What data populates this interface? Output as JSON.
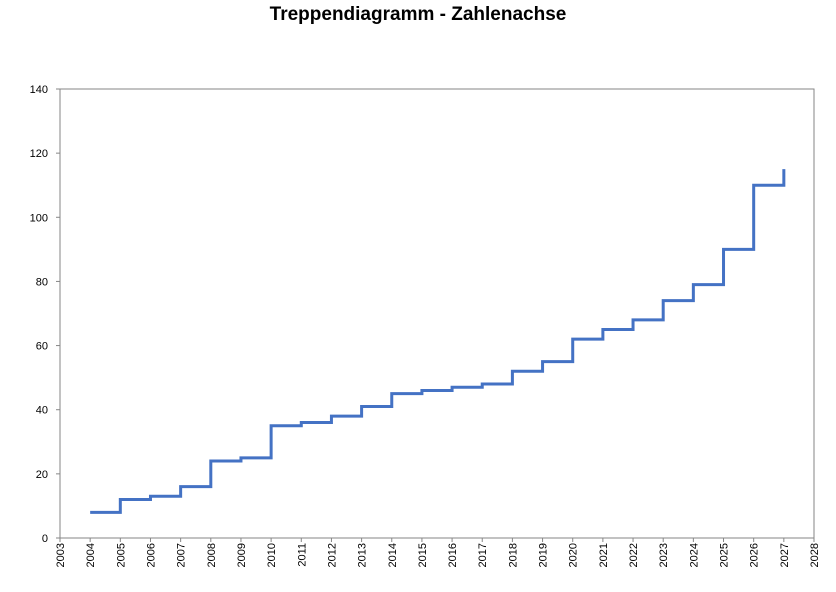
{
  "chart_data": {
    "type": "line",
    "subtype": "step",
    "title": "Treppendiagramm - Zahlenachse",
    "xlabel": "",
    "ylabel": "",
    "xlim": [
      2003,
      2028
    ],
    "ylim": [
      0,
      140
    ],
    "x_ticks": [
      "2003",
      "2004",
      "2005",
      "2006",
      "2007",
      "2008",
      "2009",
      "2010",
      "2011",
      "2012",
      "2013",
      "2014",
      "2015",
      "2016",
      "2017",
      "2018",
      "2019",
      "2020",
      "2021",
      "2022",
      "2023",
      "2024",
      "2025",
      "2026",
      "2027",
      "2028"
    ],
    "y_ticks": [
      "0",
      "20",
      "40",
      "60",
      "80",
      "100",
      "120",
      "140"
    ],
    "x_tick_orientation": "vertical",
    "grid": false,
    "legend": "none",
    "line_color": "#4472C4",
    "series": [
      {
        "x": [
          2004,
          2005,
          2006,
          2007,
          2008,
          2009,
          2010,
          2011,
          2012,
          2013,
          2014,
          2015,
          2016,
          2017,
          2018,
          2019,
          2020,
          2021,
          2022,
          2023,
          2024,
          2025,
          2026,
          2027
        ],
        "values": [
          8,
          12,
          13,
          16,
          24,
          25,
          35,
          36,
          38,
          41,
          45,
          46,
          47,
          48,
          52,
          55,
          62,
          65,
          68,
          74,
          79,
          90,
          110,
          115
        ]
      }
    ]
  }
}
